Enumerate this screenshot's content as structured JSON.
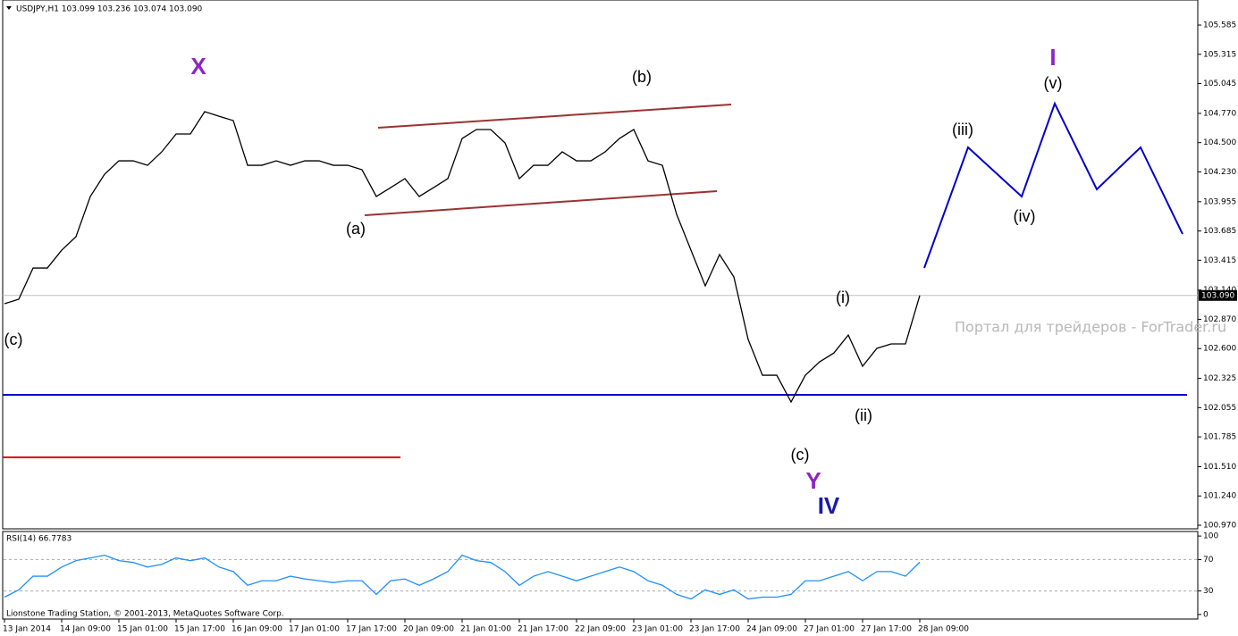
{
  "chart_data": [
    {
      "type": "line",
      "title": "USDJPY,H1  103.099 103.236 103.074 103.090",
      "color": "#000000",
      "categories": [
        "13 Jan 2014",
        null,
        null,
        null,
        "14 Jan 09:00",
        null,
        null,
        null,
        "15 Jan 01:00",
        null,
        null,
        null,
        "15 Jan 17:00",
        null,
        null,
        null,
        "16 Jan 09:00",
        null,
        null,
        null,
        "17 Jan 01:00",
        null,
        null,
        null,
        "17 Jan 17:00",
        null,
        null,
        null,
        "20 Jan 09:00",
        null,
        null,
        null,
        "21 Jan 01:00",
        null,
        null,
        null,
        "21 Jan 17:00",
        null,
        null,
        null,
        "22 Jan 09:00",
        null,
        null,
        null,
        "23 Jan 01:00",
        null,
        null,
        null,
        "23 Jan 17:00",
        null,
        null,
        null,
        "24 Jan 09:00",
        null,
        null,
        null,
        "27 Jan 01:00",
        null,
        null,
        null,
        "27 Jan 17:00",
        null,
        null,
        null,
        "28 Jan 09:00"
      ],
      "values": [
        103.014,
        103.055,
        103.343,
        103.343,
        103.508,
        103.632,
        104.003,
        104.209,
        104.332,
        104.332,
        104.291,
        104.415,
        104.58,
        104.58,
        104.786,
        104.744,
        104.703,
        104.291,
        104.291,
        104.332,
        104.291,
        104.332,
        104.332,
        104.291,
        104.291,
        104.25,
        104.003,
        104.085,
        104.168,
        104.003,
        104.085,
        104.168,
        104.538,
        104.621,
        104.621,
        104.497,
        104.168,
        104.291,
        104.291,
        104.415,
        104.332,
        104.332,
        104.415,
        104.538,
        104.621,
        104.332,
        104.291,
        103.838,
        103.508,
        103.179,
        103.467,
        103.261,
        102.684,
        102.354,
        102.354,
        102.107,
        102.354,
        102.478,
        102.56,
        102.725,
        102.437,
        102.602,
        102.643,
        102.643,
        103.09
      ],
      "ylim": [
        100.937,
        105.816
      ],
      "yticks": [
        {
          "value": 105.585,
          "label": "105.585"
        },
        {
          "value": 105.315,
          "label": "105.315"
        },
        {
          "value": 105.045,
          "label": "105.045"
        },
        {
          "value": 104.77,
          "label": "104.770"
        },
        {
          "value": 104.5,
          "label": "104.500"
        },
        {
          "value": 104.23,
          "label": "104.230"
        },
        {
          "value": 103.955,
          "label": "103.955"
        },
        {
          "value": 103.685,
          "label": "103.685"
        },
        {
          "value": 103.415,
          "label": "103.415"
        },
        {
          "value": 103.14,
          "label": "103.140"
        },
        {
          "value": 102.87,
          "label": "102.870"
        },
        {
          "value": 102.6,
          "label": "102.600"
        },
        {
          "value": 102.325,
          "label": "102.325"
        },
        {
          "value": 102.055,
          "label": "102.055"
        },
        {
          "value": 101.785,
          "label": "101.785"
        },
        {
          "value": 101.51,
          "label": "101.510"
        },
        {
          "value": 101.24,
          "label": "101.240"
        },
        {
          "value": 100.97,
          "label": "100.970"
        }
      ],
      "current_price": {
        "value": 103.09,
        "label": "103.090"
      },
      "hlines": [
        {
          "value": 102.173,
          "color": "#0000cc"
        },
        {
          "value": 101.596,
          "color": "#e00000"
        }
      ],
      "annotations": [
        {
          "text": "X",
          "color": "#8e24c8"
        },
        {
          "text": "(b)",
          "color": "#000000"
        },
        {
          "text": "(a)",
          "color": "#000000"
        },
        {
          "text": "(c)",
          "color": "#000000"
        },
        {
          "text": "(i)",
          "color": "#000000"
        },
        {
          "text": "(ii)",
          "color": "#000000"
        },
        {
          "text": "(iii)",
          "color": "#000000"
        },
        {
          "text": "(iv)",
          "color": "#000000"
        },
        {
          "text": "(v)",
          "color": "#000000"
        },
        {
          "text": "I",
          "color": "#8e24c8"
        },
        {
          "text": "(c)",
          "color": "#000000"
        },
        {
          "text": "Y",
          "color": "#8e24c8"
        },
        {
          "text": "IV",
          "color": "#1a1aa8"
        }
      ],
      "watermark": "Портал для трейдеров - ForTrader.ru"
    },
    {
      "type": "line",
      "title": "RSI(14) 66.7783",
      "color": "#1e90ff",
      "values": [
        22.1,
        31.4,
        48.8,
        48.8,
        60.5,
        68.6,
        72.1,
        75.6,
        68.6,
        66.3,
        60.5,
        64.0,
        72.1,
        68.6,
        72.1,
        60.5,
        54.7,
        37.2,
        43.0,
        43.0,
        48.8,
        45.3,
        43.0,
        40.7,
        43.0,
        43.0,
        25.6,
        43.0,
        45.3,
        37.2,
        45.3,
        54.7,
        75.6,
        68.6,
        66.3,
        54.7,
        37.2,
        48.8,
        54.7,
        48.8,
        43.0,
        48.8,
        54.7,
        60.5,
        54.7,
        43.0,
        37.2,
        25.6,
        19.8,
        31.4,
        25.6,
        31.4,
        19.8,
        22.1,
        22.1,
        25.6,
        43.0,
        43.0,
        48.8,
        54.7,
        43.0,
        54.7,
        54.7,
        48.8,
        66.7783
      ],
      "ylim": [
        -5.8,
        105.8
      ],
      "yticks": [
        100,
        70,
        30,
        0
      ],
      "levels": [
        70,
        30
      ],
      "footer": "Lionstone Trading Station, © 2001-2013, MetaQuotes Software Corp."
    }
  ]
}
